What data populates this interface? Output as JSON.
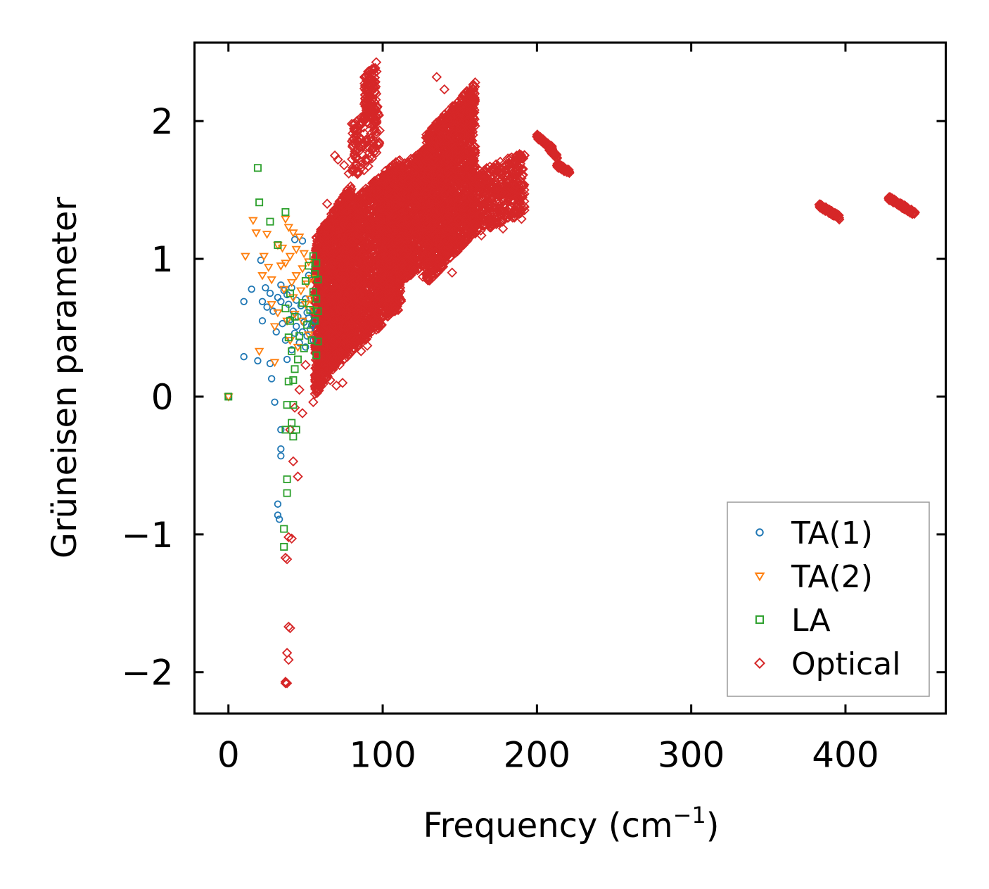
{
  "chart_data": {
    "type": "scatter",
    "title": "",
    "xlabel": "Frequency (cm",
    "xlabel_sup": "−1",
    "xlabel_end": ")",
    "ylabel": "Grüneisen parameter",
    "xlim": [
      -22,
      465
    ],
    "ylim": [
      -2.3,
      2.57
    ],
    "xticks": [
      0,
      100,
      200,
      300,
      400
    ],
    "xtick_labels": [
      "0",
      "100",
      "200",
      "300",
      "400"
    ],
    "yticks": [
      2,
      1,
      0,
      -1,
      -2
    ],
    "ytick_labels": [
      "2",
      "1",
      "0",
      "−1",
      "−2"
    ],
    "grid": false,
    "legend_position": "lower right",
    "series": [
      {
        "name": "TA(1)",
        "marker": "circle",
        "color": "#1f77b4",
        "points": [
          [
            0,
            0
          ],
          [
            10,
            0.69
          ],
          [
            10,
            0.29
          ],
          [
            15,
            0.78
          ],
          [
            19,
            0.26
          ],
          [
            21,
            0.99
          ],
          [
            22,
            0.69
          ],
          [
            22,
            0.55
          ],
          [
            24,
            0.79
          ],
          [
            25,
            0.65
          ],
          [
            27,
            0.75
          ],
          [
            27,
            0.24
          ],
          [
            28,
            0.13
          ],
          [
            29,
            0.62
          ],
          [
            30,
            -0.04
          ],
          [
            31,
            0.47
          ],
          [
            32,
            0.72
          ],
          [
            32,
            -0.78
          ],
          [
            32,
            -0.86
          ],
          [
            33,
            -0.89
          ],
          [
            34,
            0.81
          ],
          [
            34,
            0.69
          ],
          [
            34,
            -0.38
          ],
          [
            34,
            -0.43
          ],
          [
            34,
            -0.24
          ],
          [
            35,
            0.53
          ],
          [
            36,
            0.77
          ],
          [
            37,
            0.41
          ],
          [
            38,
            0.74
          ],
          [
            38,
            0.27
          ],
          [
            39,
            0.67
          ],
          [
            40,
            0.56
          ],
          [
            41,
            0.79
          ],
          [
            41,
            0.34
          ],
          [
            42,
            0.62
          ],
          [
            43,
            0.46
          ],
          [
            43,
            1.14
          ],
          [
            44,
            0.51
          ],
          [
            44,
            0.7
          ],
          [
            45,
            0.58
          ],
          [
            46,
            0.39
          ],
          [
            47,
            0.66
          ],
          [
            48,
            1.13
          ],
          [
            48,
            0.47
          ],
          [
            49,
            0.54
          ],
          [
            50,
            0.36
          ],
          [
            50,
            0.71
          ],
          [
            51,
            0.61
          ],
          [
            51,
            0.44
          ],
          [
            52,
            0.57
          ],
          [
            52,
            0.88
          ],
          [
            53,
            0.49
          ],
          [
            54,
            0.52
          ],
          [
            55,
            0.63
          ],
          [
            55,
            0.41
          ],
          [
            56,
            0.55
          ]
        ]
      },
      {
        "name": "TA(2)",
        "marker": "triangle-down",
        "color": "#ff7f0e",
        "points": [
          [
            0,
            0
          ],
          [
            11,
            1.02
          ],
          [
            16,
            1.28
          ],
          [
            18,
            1.19
          ],
          [
            20,
            0.33
          ],
          [
            22,
            0.88
          ],
          [
            23,
            1.02
          ],
          [
            25,
            1.18
          ],
          [
            26,
            0.94
          ],
          [
            28,
            0.85
          ],
          [
            28,
            0.67
          ],
          [
            30,
            0.51
          ],
          [
            30,
            0.25
          ],
          [
            32,
            0.61
          ],
          [
            32,
            1.1
          ],
          [
            34,
            0.95
          ],
          [
            35,
            1.08
          ],
          [
            36,
            0.78
          ],
          [
            37,
            0.97
          ],
          [
            37,
            1.29
          ],
          [
            38,
            0.55
          ],
          [
            39,
            1.23
          ],
          [
            40,
            1.02
          ],
          [
            40,
            0.41
          ],
          [
            41,
            0.83
          ],
          [
            42,
            1.19
          ],
          [
            42,
            0.72
          ],
          [
            43,
            0.6
          ],
          [
            44,
            1.07
          ],
          [
            44,
            0.88
          ],
          [
            45,
            0.36
          ],
          [
            46,
            1.16
          ],
          [
            47,
            0.77
          ],
          [
            48,
            0.93
          ],
          [
            48,
            0.55
          ],
          [
            49,
            1.04
          ],
          [
            50,
            0.67
          ],
          [
            51,
            0.82
          ],
          [
            52,
            0.45
          ],
          [
            52,
            0.98
          ],
          [
            53,
            0.71
          ],
          [
            54,
            0.86
          ],
          [
            55,
            0.63
          ]
        ]
      },
      {
        "name": "LA",
        "marker": "square",
        "color": "#2ca02c",
        "points": [
          [
            0,
            0
          ],
          [
            19,
            1.66
          ],
          [
            20,
            1.41
          ],
          [
            27,
            1.27
          ],
          [
            32,
            1.1
          ],
          [
            36,
            -1.09
          ],
          [
            36,
            -0.96
          ],
          [
            37,
            1.34
          ],
          [
            37,
            -0.24
          ],
          [
            37,
            0.64
          ],
          [
            38,
            -0.06
          ],
          [
            38,
            -0.6
          ],
          [
            38,
            -0.7
          ],
          [
            39,
            0.43
          ],
          [
            39,
            0.11
          ],
          [
            40,
            0.75
          ],
          [
            40,
            0.55
          ],
          [
            41,
            -0.19
          ],
          [
            41,
            0.33
          ],
          [
            42,
            -0.29
          ],
          [
            42,
            -0.06
          ],
          [
            42,
            0.12
          ],
          [
            43,
            0.2
          ],
          [
            43,
            0.58
          ],
          [
            44,
            -0.24
          ],
          [
            45,
            0.27
          ],
          [
            46,
            0.44
          ],
          [
            48,
            0.68
          ],
          [
            49,
            0.35
          ],
          [
            50,
            0.84
          ],
          [
            51,
            0.52
          ],
          [
            52,
            0.95
          ],
          [
            53,
            0.63
          ],
          [
            54,
            0.41
          ],
          [
            55,
            0.76
          ],
          [
            55,
            1.02
          ],
          [
            56,
            0.89
          ],
          [
            56,
            0.55
          ],
          [
            57,
            0.71
          ],
          [
            57,
            0.97
          ],
          [
            57,
            0.3
          ],
          [
            58,
            0.62
          ],
          [
            58,
            0.85
          ],
          [
            58,
            0.4
          ]
        ]
      },
      {
        "name": "Optical",
        "marker": "diamond",
        "color": "#d62728",
        "points": [
          [
            37,
            -2.08
          ],
          [
            37,
            -2.07
          ],
          [
            38,
            -2.08
          ],
          [
            38,
            -1.86
          ],
          [
            39,
            -1.91
          ],
          [
            39,
            -1.67
          ],
          [
            40,
            -1.68
          ],
          [
            37,
            -1.17
          ],
          [
            38,
            -1.18
          ],
          [
            39,
            -1.02
          ],
          [
            41,
            -1.03
          ],
          [
            42,
            -0.47
          ],
          [
            45,
            -0.58
          ],
          [
            40,
            -0.24
          ],
          [
            43,
            -0.08
          ],
          [
            46,
            0.05
          ],
          [
            48,
            -0.12
          ],
          [
            50,
            0.23
          ],
          [
            55,
            -0.04
          ],
          [
            60,
            0.1
          ],
          [
            66,
            0.12
          ],
          [
            70,
            0.08
          ],
          [
            72,
            0.23
          ],
          [
            74,
            0.1
          ],
          [
            78,
            0.35
          ],
          [
            82,
            0.41
          ],
          [
            86,
            0.33
          ],
          [
            90,
            0.37
          ],
          [
            97,
            0.6
          ],
          [
            104,
            0.72
          ],
          [
            112,
            0.97
          ],
          [
            120,
            1.01
          ],
          [
            126,
            0.87
          ],
          [
            132,
            1.03
          ],
          [
            137,
            1.1
          ],
          [
            141,
            1.02
          ],
          [
            145,
            0.9
          ],
          [
            150,
            1.13
          ],
          [
            160,
            1.24
          ],
          [
            164,
            1.17
          ],
          [
            168,
            1.39
          ],
          [
            178,
            1.22
          ],
          [
            190,
            1.29
          ],
          [
            96,
            2.0
          ],
          [
            94,
            1.98
          ],
          [
            80,
            1.98
          ],
          [
            83,
            1.93
          ],
          [
            88,
            1.84
          ],
          [
            71,
            1.72
          ],
          [
            78,
            1.62
          ],
          [
            135,
            2.32
          ],
          [
            140,
            2.23
          ],
          [
            92,
            2.24
          ],
          [
            96,
            2.36
          ],
          [
            93,
            2.15
          ],
          [
            87,
            1.84
          ],
          [
            82,
            1.78
          ],
          [
            75,
            1.68
          ],
          [
            69,
            1.75
          ],
          [
            64,
            1.4
          ],
          [
            60,
            1.2
          ]
        ],
        "clusters": [
          {
            "x": [
              56,
              80
            ],
            "y": [
              0.2,
              1.35
            ],
            "n": 1600
          },
          {
            "x": [
              74,
              112
            ],
            "y": [
              0.45,
              1.55
            ],
            "n": 1700
          },
          {
            "x": [
              98,
              132
            ],
            "y": [
              0.85,
              1.7
            ],
            "n": 1500
          },
          {
            "x": [
              128,
              160
            ],
            "y": [
              1.0,
              2.1
            ],
            "n": 1700
          },
          {
            "x": [
              158,
              192
            ],
            "y": [
              1.25,
              1.7
            ],
            "n": 450
          },
          {
            "x": [
              80,
              98
            ],
            "y": [
              1.65,
              2.05
            ],
            "n": 120
          },
          {
            "x": [
              88,
              96
            ],
            "y": [
              2.05,
              2.38
            ],
            "n": 90
          },
          {
            "x": [
              60,
              82
            ],
            "y": [
              0.3,
              0.75
            ],
            "n": 500
          }
        ],
        "bands": [
          {
            "x": [
              200,
              210
            ],
            "y": [
              1.89,
              1.8
            ],
            "n": 90
          },
          {
            "x": [
              208,
              213
            ],
            "y": [
              1.8,
              1.74
            ],
            "n": 40
          },
          {
            "x": [
              213,
              221
            ],
            "y": [
              1.68,
              1.63
            ],
            "n": 60
          },
          {
            "x": [
              383,
              396
            ],
            "y": [
              1.39,
              1.3
            ],
            "n": 80
          },
          {
            "x": [
              428,
              445
            ],
            "y": [
              1.44,
              1.33
            ],
            "n": 100
          }
        ]
      }
    ]
  }
}
